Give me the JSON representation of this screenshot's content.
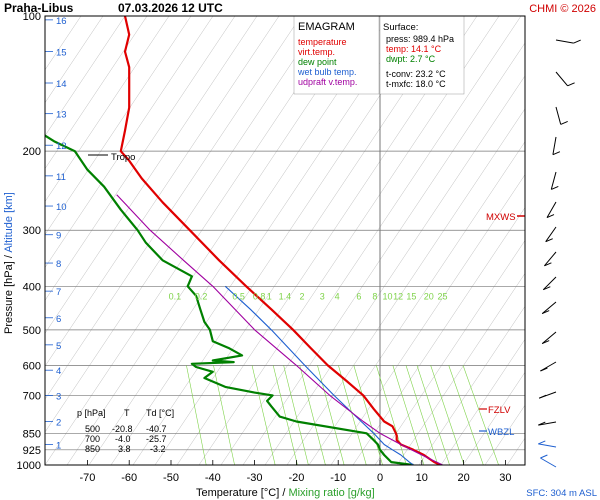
{
  "header": {
    "station": "Praha-Libus",
    "datetime": "07.03.2026 12 UTC",
    "copyright": "CHMI © 2026"
  },
  "legend": {
    "title": "EMAGRAM",
    "items": [
      {
        "label": "temperature",
        "color": "#e00000"
      },
      {
        "label": "virt.temp.",
        "color": "#e00000"
      },
      {
        "label": "dew point",
        "color": "#008000"
      },
      {
        "label": "wet bulb temp.",
        "color": "#1e5fd0"
      },
      {
        "label": "udpraft v.temp.",
        "color": "#a000a0"
      }
    ]
  },
  "surface": {
    "title": "Surface:",
    "press": "press: 989.4 hPa",
    "temp": "temp: 14.1 °C",
    "dwpt": "dwpt: 2.7 °C",
    "tconv": "t-conv: 23.2 °C",
    "tmxfc": "t-mxfc: 18.0 °C"
  },
  "table": {
    "headers": [
      "p [hPa]",
      "T",
      "Td [°C]"
    ],
    "rows": [
      [
        "500",
        "-20.8",
        "-40.7"
      ],
      [
        "700",
        "-4.0",
        "-25.7"
      ],
      [
        "850",
        "3.8",
        "-3.2"
      ]
    ]
  },
  "labels": {
    "tropo": "Tropo",
    "mxws": "MXWS",
    "fzlv": "FZLV",
    "wbzl": "WBZL",
    "sfc": "SFC: 304 m ASL"
  },
  "axis_text": {
    "xlabel": "Temperature [°C]",
    "xsep": "/",
    "xlabel2": "Mixing ratio [g/kg]",
    "ylabel": "Pressure [hPa]",
    "ysep": "/",
    "ylabel2": "Altitude [km]"
  },
  "chart_data": {
    "type": "line",
    "title": "EMAGRAM",
    "xlim": [
      -80,
      35
    ],
    "ylim": [
      1000,
      100
    ],
    "x_ticks": [
      -70,
      -60,
      -50,
      -40,
      -30,
      -20,
      -10,
      0,
      10,
      20,
      30
    ],
    "pressure_ticks": [
      100,
      200,
      300,
      400,
      500,
      600,
      700,
      850,
      925,
      1000
    ],
    "altitude_ticks": [
      "1",
      "2",
      "3",
      "4",
      "5",
      "6",
      "7",
      "8",
      "9",
      "10",
      "11",
      "12",
      "13",
      "14",
      "15",
      "16"
    ],
    "mixing_ratio_labels": [
      "0.1",
      "0.2",
      "0.5",
      "0.8",
      "1",
      "1.4",
      "2",
      "3",
      "4",
      "6",
      "8",
      "10",
      "12",
      "15",
      "20",
      "25"
    ],
    "series": [
      {
        "name": "temperature",
        "color": "#e00000",
        "points": [
          [
            1000,
            14.5
          ],
          [
            985,
            13
          ],
          [
            950,
            10.5
          ],
          [
            925,
            8
          ],
          [
            900,
            5
          ],
          [
            880,
            4
          ],
          [
            860,
            4
          ],
          [
            850,
            3.8
          ],
          [
            820,
            3
          ],
          [
            800,
            1
          ],
          [
            750,
            -1.5
          ],
          [
            700,
            -4
          ],
          [
            650,
            -8
          ],
          [
            600,
            -12.5
          ],
          [
            550,
            -16.5
          ],
          [
            500,
            -20.8
          ],
          [
            450,
            -26
          ],
          [
            400,
            -32
          ],
          [
            350,
            -38.5
          ],
          [
            300,
            -45.5
          ],
          [
            260,
            -52
          ],
          [
            230,
            -57
          ],
          [
            210,
            -60
          ],
          [
            200,
            -62
          ],
          [
            180,
            -61
          ],
          [
            160,
            -60
          ],
          [
            140,
            -60
          ],
          [
            130,
            -60
          ],
          [
            120,
            -61
          ],
          [
            110,
            -60
          ],
          [
            100,
            -61
          ]
        ]
      },
      {
        "name": "dew point",
        "color": "#008000",
        "points": [
          [
            1000,
            8
          ],
          [
            985,
            2.7
          ],
          [
            950,
            1
          ],
          [
            925,
            0
          ],
          [
            900,
            -0.5
          ],
          [
            880,
            -1.5
          ],
          [
            850,
            -3.2
          ],
          [
            800,
            -20
          ],
          [
            780,
            -24
          ],
          [
            740,
            -26
          ],
          [
            720,
            -27
          ],
          [
            700,
            -25.7
          ],
          [
            690,
            -30
          ],
          [
            670,
            -37
          ],
          [
            640,
            -42
          ],
          [
            620,
            -40
          ],
          [
            605,
            -44
          ],
          [
            595,
            -45
          ],
          [
            590,
            -35
          ],
          [
            585,
            -40
          ],
          [
            570,
            -33
          ],
          [
            550,
            -36
          ],
          [
            530,
            -40
          ],
          [
            500,
            -40.7
          ],
          [
            480,
            -42
          ],
          [
            450,
            -43
          ],
          [
            420,
            -44
          ],
          [
            400,
            -46
          ],
          [
            380,
            -45
          ],
          [
            350,
            -52
          ],
          [
            320,
            -56
          ],
          [
            300,
            -58
          ],
          [
            270,
            -62
          ],
          [
            240,
            -66
          ],
          [
            220,
            -70
          ],
          [
            200,
            -73
          ],
          [
            190,
            -78
          ],
          [
            180,
            -82
          ]
        ]
      },
      {
        "name": "wet bulb temp.",
        "color": "#1e5fd0",
        "points": [
          [
            1000,
            8
          ],
          [
            985,
            7
          ],
          [
            950,
            5
          ],
          [
            925,
            3
          ],
          [
            900,
            1
          ],
          [
            850,
            -1.5
          ],
          [
            800,
            -4.5
          ],
          [
            700,
            -11
          ],
          [
            600,
            -18
          ],
          [
            500,
            -26
          ],
          [
            450,
            -31
          ],
          [
            400,
            -37
          ]
        ]
      },
      {
        "name": "udpraft v.temp.",
        "color": "#a000a0",
        "points": [
          [
            1000,
            15
          ],
          [
            950,
            10
          ],
          [
            900,
            5
          ],
          [
            850,
            0
          ],
          [
            800,
            -4
          ],
          [
            700,
            -12
          ],
          [
            600,
            -20
          ],
          [
            500,
            -30
          ],
          [
            400,
            -40
          ],
          [
            350,
            -47
          ],
          [
            300,
            -55
          ],
          [
            250,
            -63
          ]
        ]
      }
    ],
    "annotations": [
      {
        "label": "Tropo",
        "pressure": 200
      },
      {
        "label": "MXWS",
        "pressure": 255
      },
      {
        "label": "FZLV",
        "pressure": 810
      },
      {
        "label": "WBZL",
        "pressure": 880
      }
    ]
  }
}
